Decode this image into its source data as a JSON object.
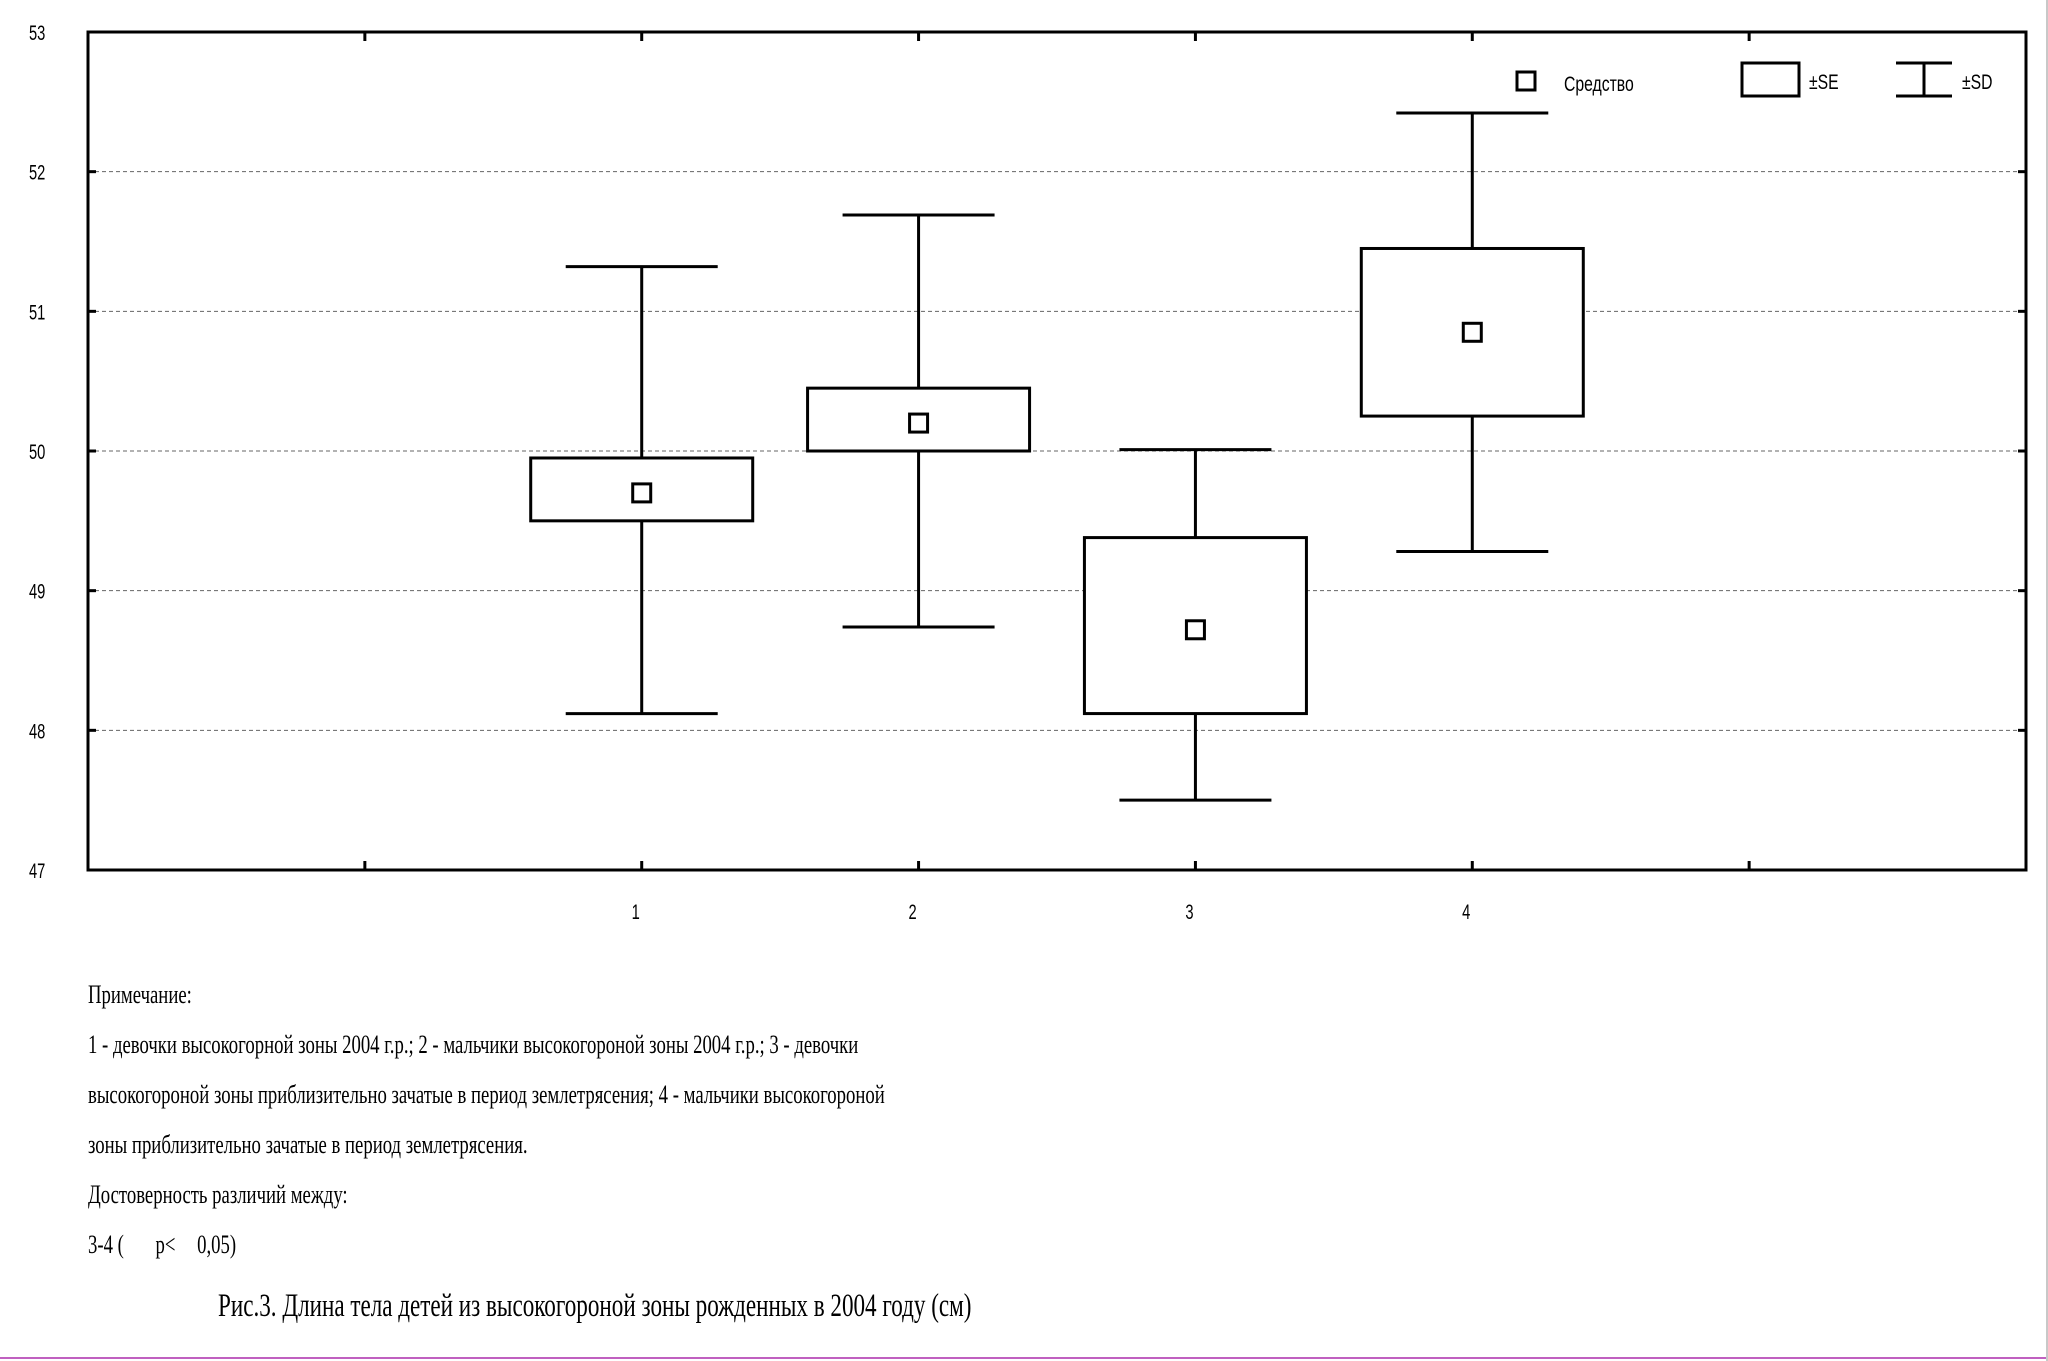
{
  "chart_data": {
    "type": "box",
    "categories": [
      "1",
      "2",
      "3",
      "4"
    ],
    "series": [
      {
        "mean": [
          49.7,
          50.2,
          48.72,
          50.85
        ],
        "se_low": [
          49.5,
          50.0,
          48.12,
          50.25
        ],
        "se_high": [
          49.95,
          50.45,
          49.38,
          51.45
        ],
        "sd_low": [
          48.12,
          48.74,
          47.5,
          49.28
        ],
        "sd_high": [
          51.32,
          51.69,
          50.01,
          52.42
        ]
      }
    ],
    "ylim": [
      47,
      53
    ],
    "yticks": [
      "47",
      "48",
      "49",
      "50",
      "51",
      "52",
      "53"
    ],
    "grid": "horizontal dashed",
    "legend": {
      "position": "top-right",
      "mean_label": "Средство",
      "se_label": "±SE",
      "sd_label": "±SD"
    }
  },
  "notes": {
    "heading": "Примечание:",
    "line1": "1 - девочки высокогорной зоны 2004 г.р.; 2 - мальчики высокогороной зоны 2004 г.р.; 3 - девочки",
    "line2": "высокогороной зоны приблизительно зачатые в период землетрясения; 4 - мальчики высокогороной",
    "line3": "зоны приблизительно зачатые в период землетрясения.",
    "significance_heading": "Достоверность различий между:",
    "pair": "3-4 (",
    "p_label": "p<",
    "p_value": "0,05)"
  },
  "caption": "Рис.3. Длина тела детей из высокогороной зоны рожденных в 2004 году (см)"
}
